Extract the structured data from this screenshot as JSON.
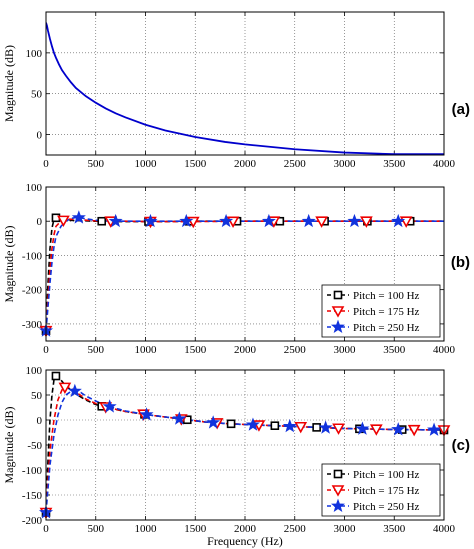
{
  "panel_labels": [
    "(a)",
    "(b)",
    "(c)"
  ],
  "shared_xlabel": "Frequency (Hz)",
  "chart_data": [
    {
      "type": "line",
      "panel": "(a)",
      "title": "",
      "xlabel": "",
      "ylabel": "Magnitude (dB)",
      "xlim": [
        0,
        4000
      ],
      "ylim": [
        -25,
        150
      ],
      "xticks": [
        0,
        500,
        1000,
        1500,
        2000,
        2500,
        3000,
        3500,
        4000
      ],
      "yticks": [
        0,
        50,
        100
      ],
      "grid": true,
      "series": [
        {
          "color": "#0000cc",
          "x": [
            0,
            10,
            20,
            40,
            60,
            80,
            100,
            130,
            160,
            200,
            250,
            300,
            400,
            500,
            600,
            700,
            800,
            1000,
            1200,
            1500,
            1800,
            2000,
            2500,
            3000,
            3500,
            4000
          ],
          "y": [
            137,
            133,
            127,
            117,
            108,
            100,
            94,
            86,
            79,
            72,
            64,
            57,
            47,
            39,
            32,
            26,
            21,
            12,
            5,
            -3,
            -9,
            -12,
            -18,
            -22,
            -24,
            -24
          ]
        }
      ]
    },
    {
      "type": "line",
      "panel": "(b)",
      "title": "",
      "xlabel": "",
      "ylabel": "Magnitude (dB)",
      "xlim": [
        0,
        4000
      ],
      "ylim": [
        -350,
        100
      ],
      "xticks": [
        0,
        500,
        1000,
        1500,
        2000,
        2500,
        3000,
        3500,
        4000
      ],
      "yticks": [
        -300,
        -200,
        -100,
        0,
        100
      ],
      "grid": true,
      "legend_position": "bottom-right",
      "series": [
        {
          "name": "Pitch = 100 Hz",
          "color": "#000000",
          "marker": "square",
          "x": [
            0,
            20,
            40,
            60,
            80,
            100,
            150,
            200,
            300,
            400,
            500,
            600,
            700,
            800,
            1000,
            1200,
            1500,
            2000,
            2500,
            3000,
            3500,
            4000
          ],
          "y": [
            -320,
            -180,
            -80,
            -20,
            5,
            10,
            7,
            3,
            2,
            1,
            0,
            0,
            -1,
            -1,
            -1,
            -1,
            0,
            0,
            0,
            0,
            0,
            0
          ],
          "marker_x": [
            0,
            100,
            560,
            1030,
            1440,
            1920,
            2350,
            2800,
            3230,
            3660
          ]
        },
        {
          "name": "Pitch = 175 Hz",
          "color": "#ee0000",
          "marker": "triangle-down",
          "x": [
            0,
            20,
            40,
            60,
            80,
            100,
            150,
            200,
            250,
            300,
            400,
            500,
            600,
            700,
            800,
            1000,
            1200,
            1500,
            2000,
            2500,
            3000,
            3500,
            4000
          ],
          "y": [
            -320,
            -230,
            -140,
            -80,
            -40,
            -15,
            0,
            5,
            6,
            5,
            3,
            1,
            0,
            0,
            0,
            -1,
            -1,
            -1,
            0,
            0,
            0,
            0,
            0
          ],
          "marker_x": [
            0,
            175,
            650,
            1050,
            1480,
            1880,
            2290,
            2770,
            3220,
            3620
          ]
        },
        {
          "name": "Pitch = 250 Hz",
          "color": "#1133dd",
          "marker": "star",
          "x": [
            0,
            20,
            40,
            60,
            80,
            100,
            150,
            200,
            250,
            300,
            350,
            400,
            500,
            600,
            700,
            800,
            1000,
            1200,
            1500,
            2000,
            2500,
            3000,
            3500,
            4000
          ],
          "y": [
            -320,
            -250,
            -180,
            -120,
            -75,
            -45,
            -15,
            0,
            8,
            11,
            10,
            7,
            3,
            1,
            0,
            0,
            0,
            0,
            0,
            0,
            0,
            0,
            0,
            0
          ],
          "marker_x": [
            0,
            330,
            700,
            1050,
            1410,
            1810,
            2240,
            2640,
            3100,
            3540
          ]
        }
      ]
    },
    {
      "type": "line",
      "panel": "(c)",
      "title": "",
      "xlabel": "Frequency (Hz)",
      "ylabel": "Magnitude (dB)",
      "xlim": [
        0,
        4000
      ],
      "ylim": [
        -200,
        100
      ],
      "xticks": [
        0,
        500,
        1000,
        1500,
        2000,
        2500,
        3000,
        3500,
        4000
      ],
      "yticks": [
        -200,
        -150,
        -100,
        -50,
        0,
        50,
        100
      ],
      "grid": true,
      "legend_position": "bottom-right",
      "series": [
        {
          "name": "Pitch = 100 Hz",
          "color": "#000000",
          "marker": "square",
          "x": [
            0,
            20,
            40,
            60,
            80,
            100,
            150,
            200,
            300,
            400,
            500,
            600,
            800,
            1000,
            1200,
            1400,
            1600,
            1800,
            2000,
            2500,
            3000,
            3500,
            4000
          ],
          "y": [
            -185,
            -80,
            0,
            50,
            80,
            88,
            80,
            68,
            52,
            40,
            31,
            25,
            17,
            11,
            6,
            1,
            -4,
            -7,
            -9,
            -13,
            -17,
            -19,
            -20
          ],
          "marker_x": [
            0,
            100,
            560,
            990,
            1420,
            1860,
            2300,
            2720,
            3150,
            3580,
            4000
          ]
        },
        {
          "name": "Pitch = 175 Hz",
          "color": "#ee0000",
          "marker": "triangle-down",
          "x": [
            0,
            40,
            80,
            120,
            160,
            200,
            250,
            300,
            400,
            500,
            600,
            800,
            1000,
            1200,
            1400,
            1600,
            1800,
            2000,
            2500,
            3000,
            3500,
            4000
          ],
          "y": [
            -185,
            -60,
            0,
            40,
            60,
            67,
            64,
            56,
            42,
            33,
            26,
            17,
            11,
            6,
            1,
            -4,
            -7,
            -9,
            -13,
            -17,
            -19,
            -20
          ],
          "marker_x": [
            0,
            190,
            600,
            980,
            1360,
            1720,
            2140,
            2560,
            2940,
            3320,
            3700,
            4000
          ]
        },
        {
          "name": "Pitch = 250 Hz",
          "color": "#1133dd",
          "marker": "star",
          "x": [
            0,
            40,
            80,
            120,
            160,
            200,
            250,
            300,
            350,
            400,
            500,
            600,
            800,
            1000,
            1200,
            1400,
            1600,
            1800,
            2000,
            2500,
            3000,
            3500,
            4000
          ],
          "y": [
            -185,
            -90,
            -30,
            10,
            35,
            50,
            57,
            58,
            55,
            48,
            38,
            29,
            18,
            11,
            6,
            1,
            -4,
            -7,
            -9,
            -13,
            -17,
            -19,
            -20
          ],
          "marker_x": [
            0,
            290,
            640,
            1010,
            1340,
            1680,
            2080,
            2450,
            2810,
            3180,
            3540,
            3900
          ]
        }
      ]
    }
  ]
}
